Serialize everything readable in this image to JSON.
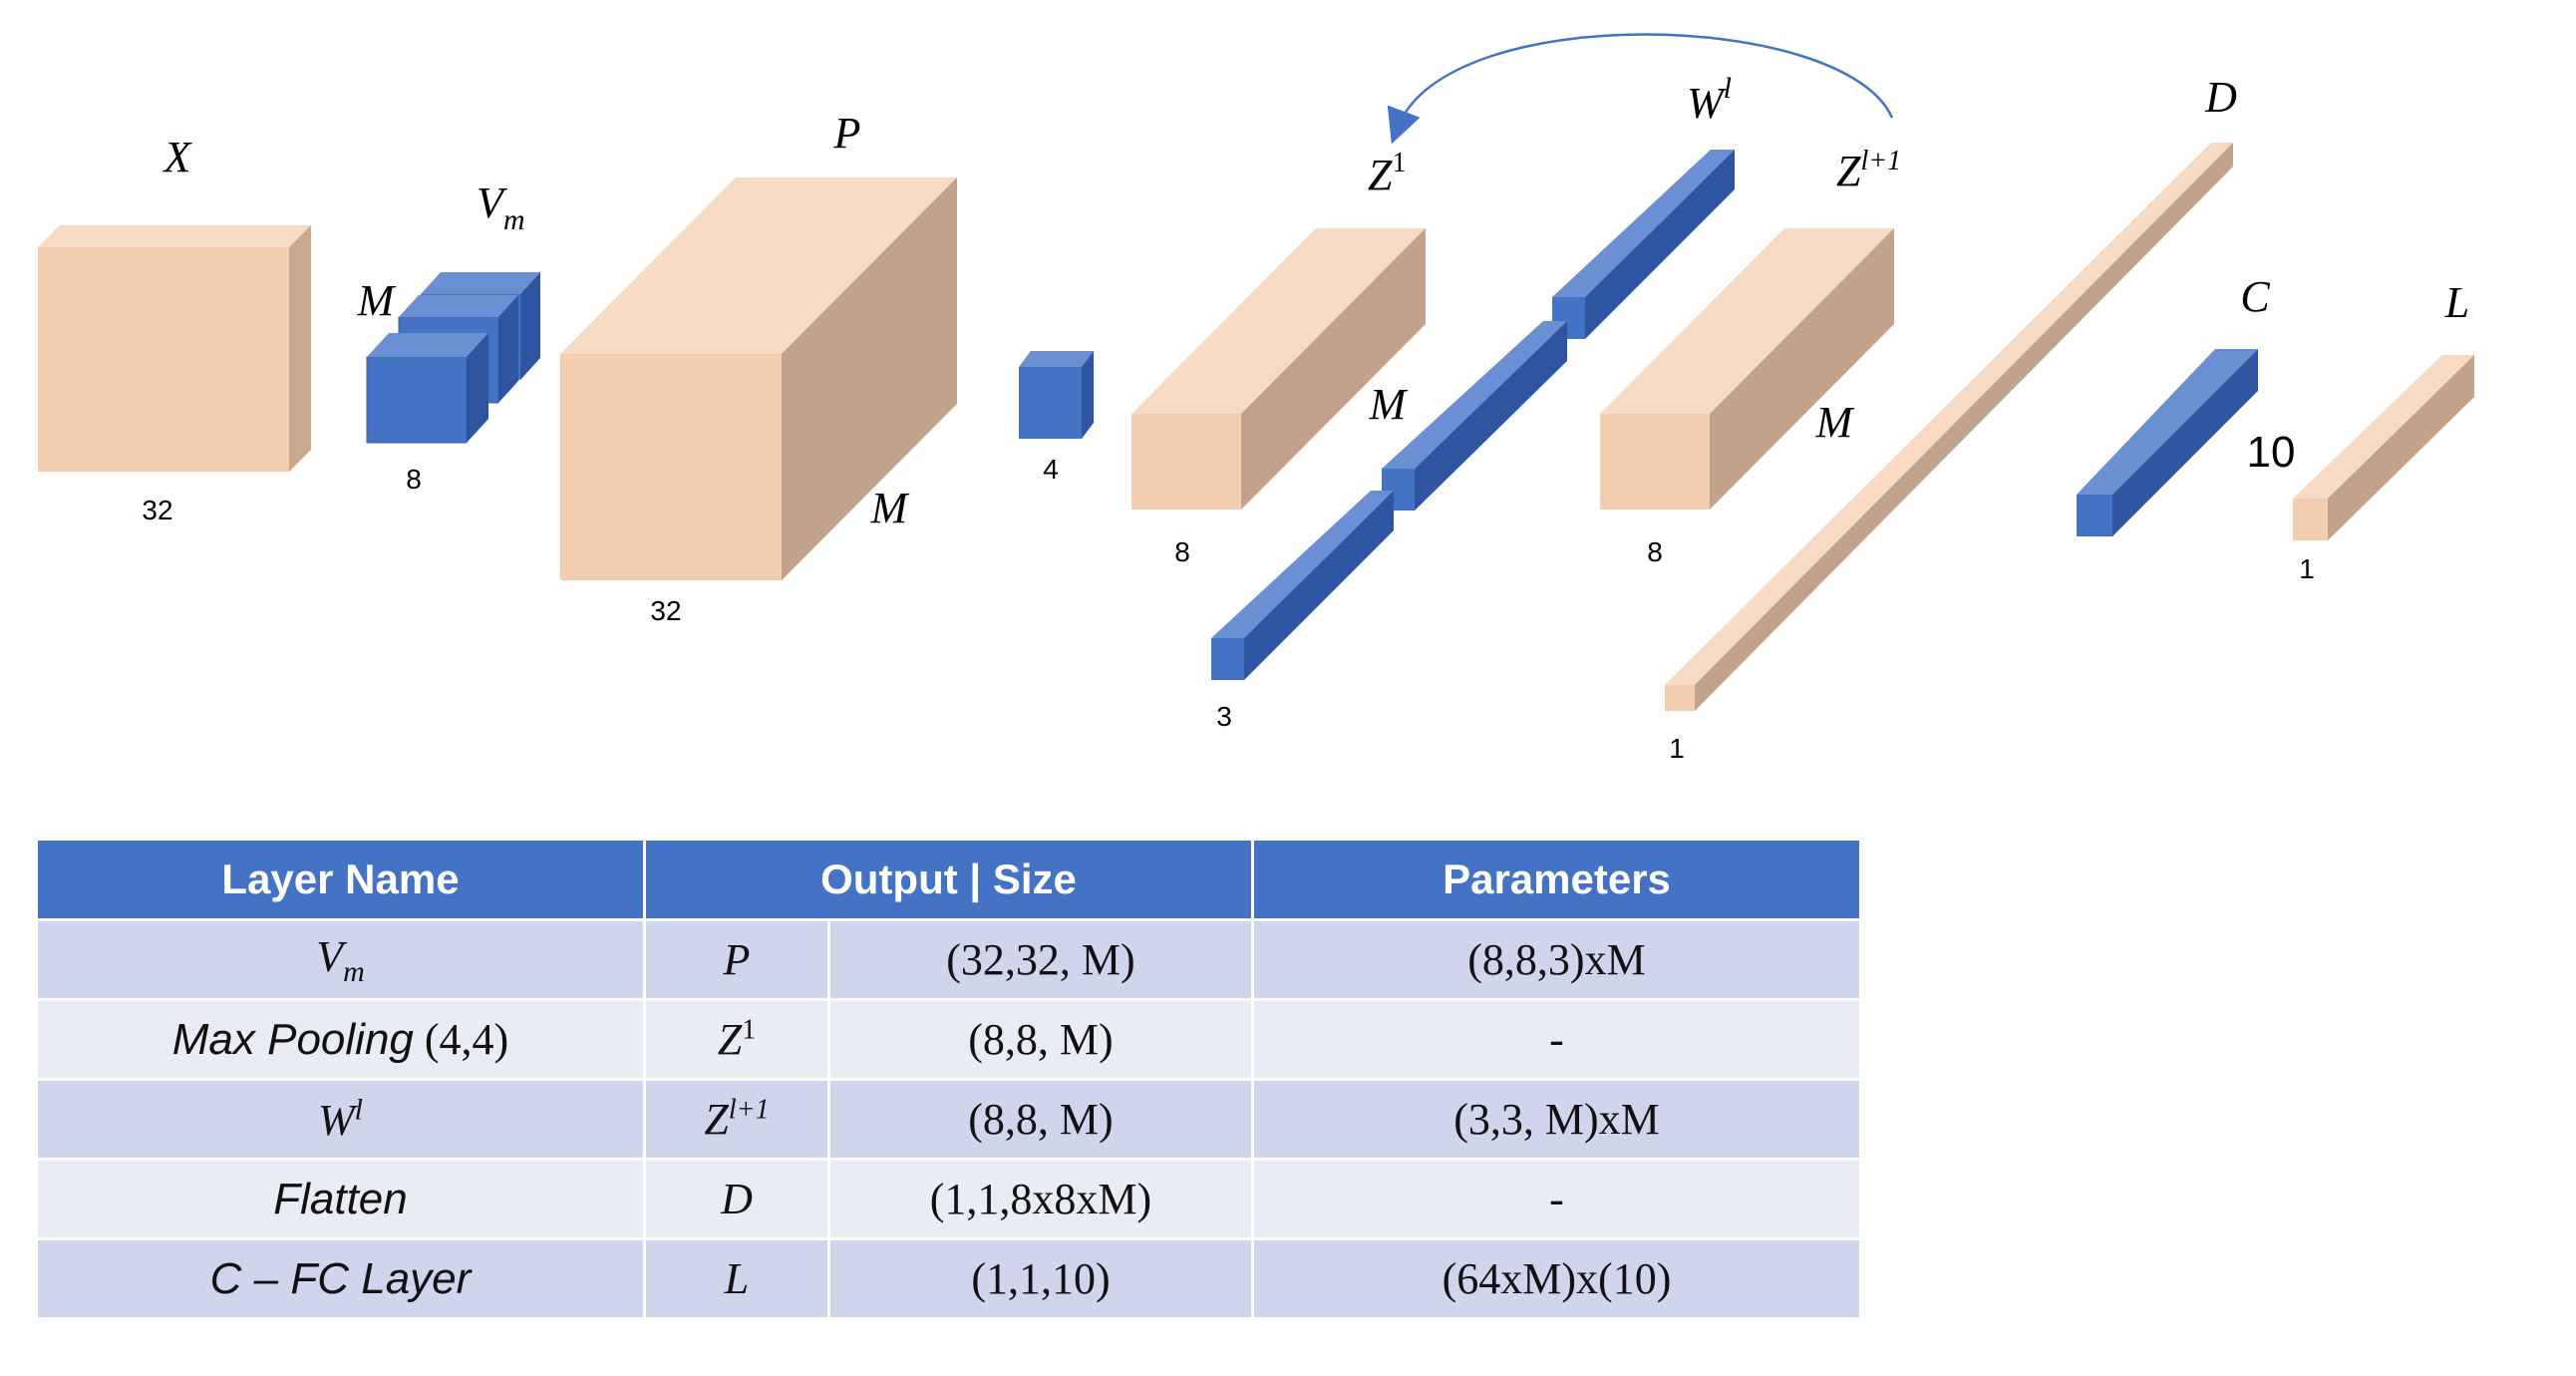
{
  "diagram": {
    "labels": {
      "X": "X",
      "Vm_base": "V",
      "Vm_sub": "m",
      "M_vm": "M",
      "P": "P",
      "M_p": "M",
      "Z1_base": "Z",
      "Z1_sup": "1",
      "M_z1": "M",
      "Wl_base": "W",
      "Wl_sup": "l",
      "Zl1_base": "Z",
      "Zl1_sup": "l+1",
      "M_zl1": "M",
      "D": "D",
      "C": "C",
      "ten": "10",
      "L": "L"
    },
    "sizes": {
      "x": "32",
      "vm": "8",
      "p": "32",
      "pool": "4",
      "z1": "8",
      "w": "3",
      "zl1": "8",
      "d": "1",
      "l": "1"
    },
    "colors": {
      "peach": "#f2cdb0",
      "blue": "#4472c4",
      "arrow": "#4472c4"
    }
  },
  "table": {
    "headers": [
      "Layer Name",
      "Output | Size",
      "Parameters"
    ],
    "rows": [
      {
        "name": "V",
        "name_sub": "m",
        "name_style": "math",
        "output": "P",
        "output_sup": "",
        "size": "(32,32, M)",
        "params": "(8,8,3)xM"
      },
      {
        "name": "Max Pooling",
        "name_extra": " (4,4)",
        "name_style": "italic",
        "output": "Z",
        "output_sup": "1",
        "size": "(8,8, M)",
        "params": "-"
      },
      {
        "name": "W",
        "name_sup": "l",
        "name_style": "math",
        "output": "Z",
        "output_sup": "l+1",
        "size": "(8,8, M)",
        "params": "(3,3, M)xM"
      },
      {
        "name": "Flatten",
        "name_style": "italic",
        "output": "D",
        "output_sup": "",
        "size": "(1,1,8x8xM)",
        "params": "-"
      },
      {
        "name": "C – FC Layer",
        "name_style": "italic",
        "output": "L",
        "output_sup": "",
        "size": "(1,1,10)",
        "params": "(64xM)x(10)"
      }
    ]
  }
}
